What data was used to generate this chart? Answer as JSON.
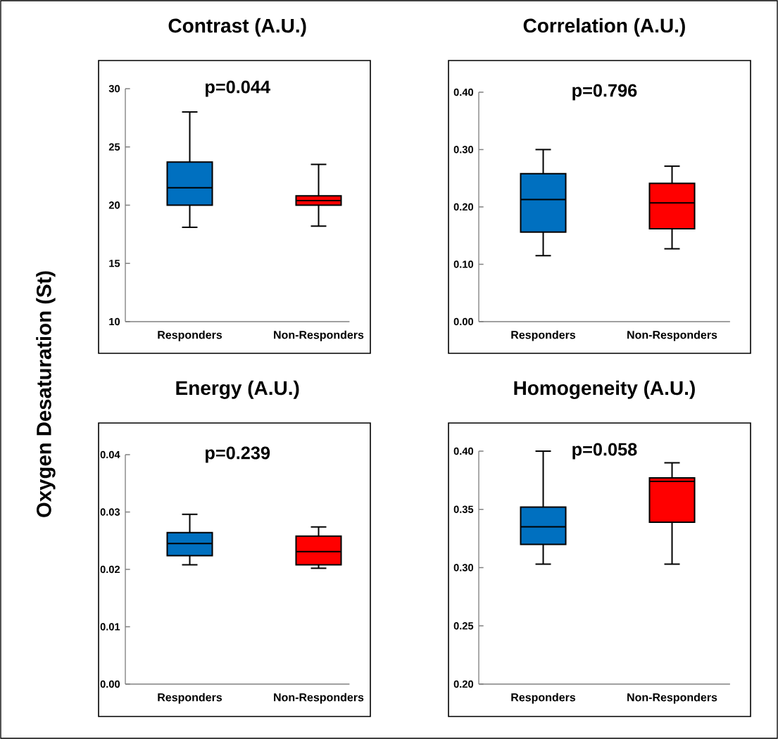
{
  "chart_data": [
    {
      "type": "box",
      "title": "Contrast (A.U.)",
      "ylabel": "Oxygen Desaturation (St)",
      "annotations": [
        "p=0.044"
      ],
      "categories": [
        "Responders",
        "Non-Responders"
      ],
      "colors": [
        "#0070c0",
        "#ff0000"
      ],
      "boxes": [
        {
          "low": 18.1,
          "q1": 20.0,
          "median": 21.5,
          "q3": 23.7,
          "high": 28.0
        },
        {
          "low": 18.2,
          "q1": 20.0,
          "median": 20.4,
          "q3": 20.8,
          "high": 23.5
        }
      ],
      "ylim": [
        10,
        30
      ],
      "yticks": [
        10,
        15,
        20,
        25,
        30
      ]
    },
    {
      "type": "box",
      "title": "Correlation (A.U.)",
      "annotations": [
        "p=0.796"
      ],
      "categories": [
        "Responders",
        "Non-Responders"
      ],
      "colors": [
        "#0070c0",
        "#ff0000"
      ],
      "boxes": [
        {
          "low": 0.115,
          "q1": 0.156,
          "median": 0.213,
          "q3": 0.258,
          "high": 0.3
        },
        {
          "low": 0.127,
          "q1": 0.162,
          "median": 0.207,
          "q3": 0.241,
          "high": 0.271
        }
      ],
      "ylim": [
        0,
        0.4
      ],
      "yticks": [
        {
          "value": 0,
          "label": "0.00"
        },
        {
          "value": 0.1,
          "label": "0.10"
        },
        {
          "value": 0.2,
          "label": "0.20"
        },
        {
          "value": 0.3,
          "label": "0.30"
        },
        {
          "value": 0.4,
          "label": "0.40"
        }
      ]
    },
    {
      "type": "box",
      "title": "Energy (A.U.)",
      "annotations": [
        "p=0.239"
      ],
      "categories": [
        "Responders",
        "Non-Responders"
      ],
      "colors": [
        "#0070c0",
        "#ff0000"
      ],
      "boxes": [
        {
          "low": 0.0208,
          "q1": 0.0224,
          "median": 0.0245,
          "q3": 0.0264,
          "high": 0.0296
        },
        {
          "low": 0.0202,
          "q1": 0.0208,
          "median": 0.0231,
          "q3": 0.0258,
          "high": 0.0274
        }
      ],
      "ylim": [
        0,
        0.04
      ],
      "yticks": [
        {
          "value": 0,
          "label": "0.00"
        },
        {
          "value": 0.01,
          "label": "0.01"
        },
        {
          "value": 0.02,
          "label": "0.02"
        },
        {
          "value": 0.03,
          "label": "0.03"
        },
        {
          "value": 0.04,
          "label": "0.04"
        }
      ]
    },
    {
      "type": "box",
      "title": "Homogeneity (A.U.)",
      "annotations": [
        "p=0.058"
      ],
      "categories": [
        "Responders",
        "Non-Responders"
      ],
      "colors": [
        "#0070c0",
        "#ff0000"
      ],
      "boxes": [
        {
          "low": 0.303,
          "q1": 0.32,
          "median": 0.335,
          "q3": 0.352,
          "high": 0.4
        },
        {
          "low": 0.303,
          "q1": 0.339,
          "median": 0.374,
          "q3": 0.377,
          "high": 0.39
        }
      ],
      "ylim": [
        0.2,
        0.4
      ],
      "yticks": [
        {
          "value": 0.2,
          "label": "0.20"
        },
        {
          "value": 0.25,
          "label": "0.25"
        },
        {
          "value": 0.3,
          "label": "0.30"
        },
        {
          "value": 0.35,
          "label": "0.35"
        },
        {
          "value": 0.4,
          "label": "0.40"
        }
      ]
    }
  ]
}
